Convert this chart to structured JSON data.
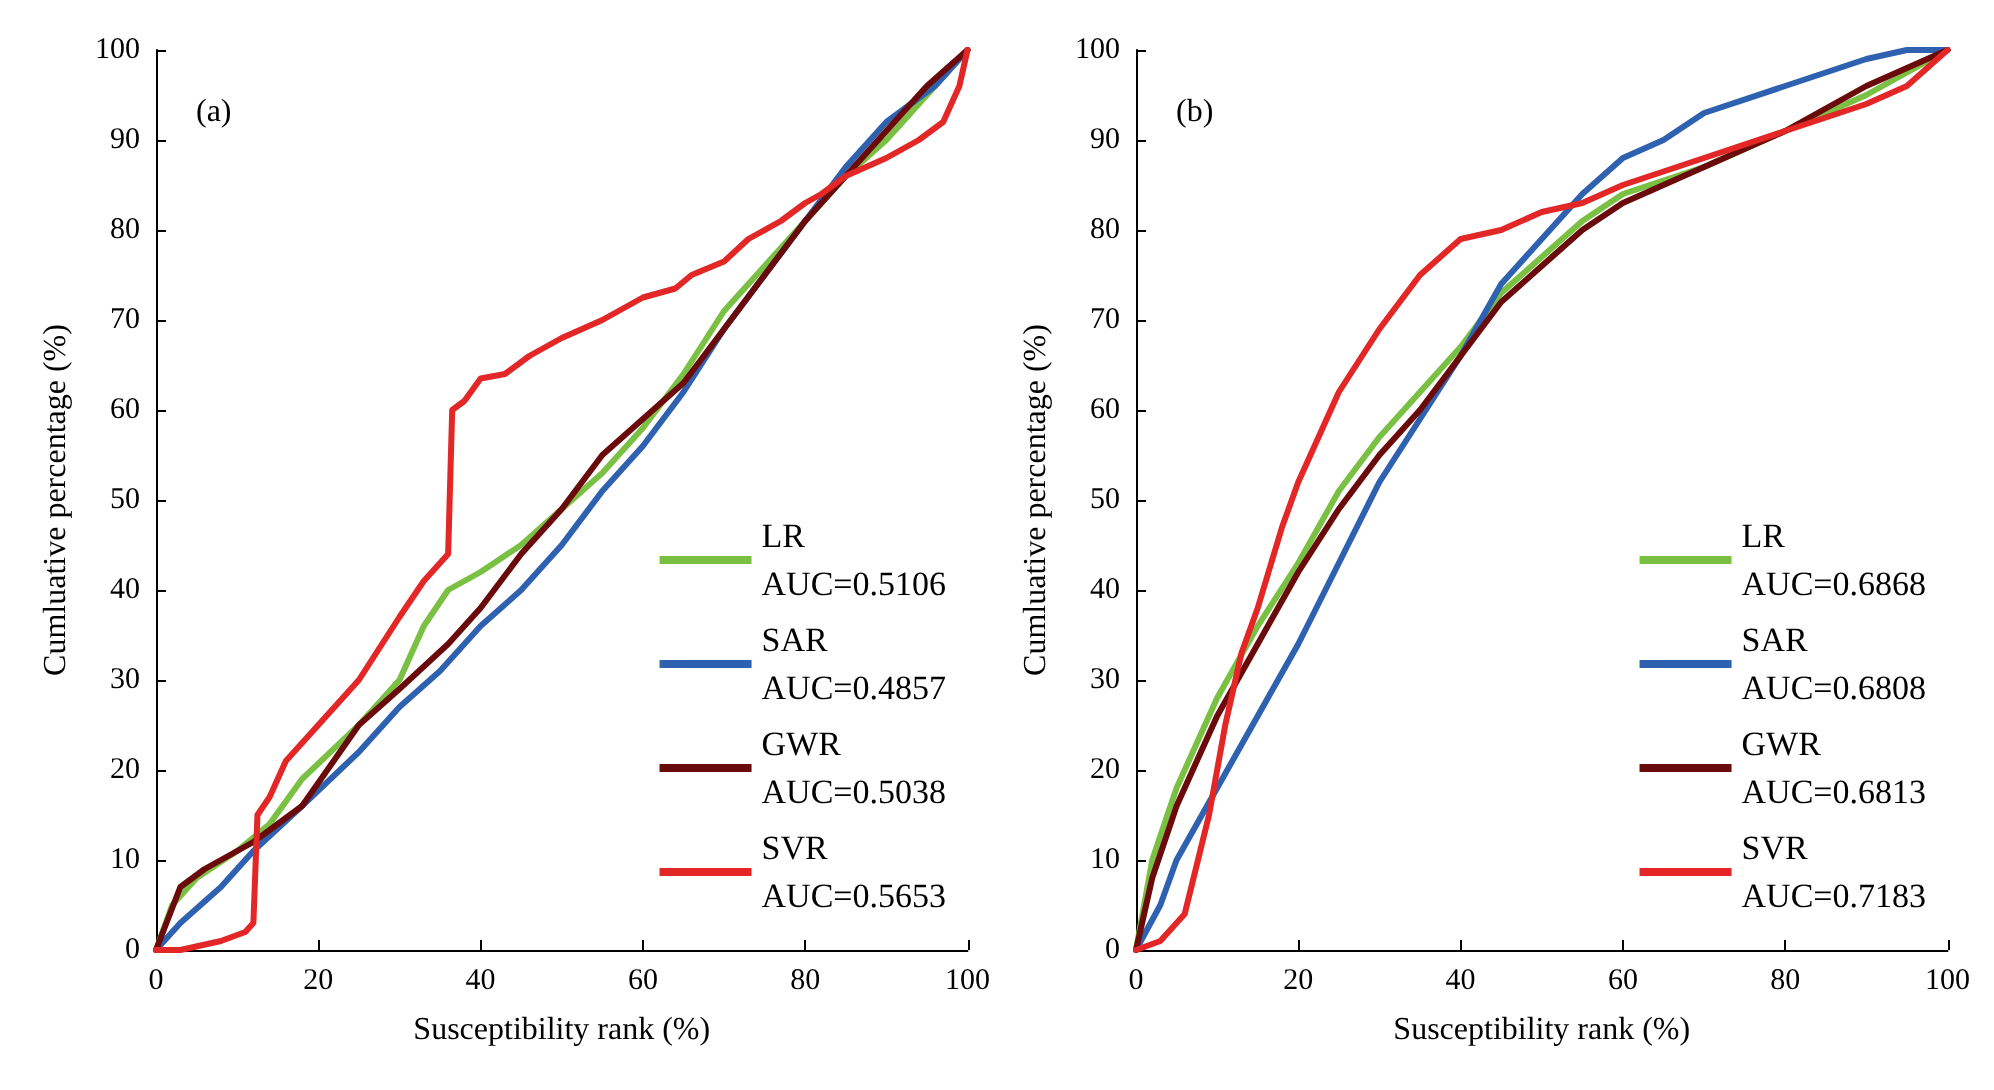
{
  "chart_data": [
    {
      "type": "line",
      "xlabel": "Susceptibility rank (%)",
      "ylabel": "Cumluative percentage (%)",
      "annotations": [
        "(a)"
      ],
      "xlim": [
        0,
        100
      ],
      "ylim": [
        0,
        100
      ],
      "xticks": [
        0,
        20,
        40,
        60,
        80,
        100
      ],
      "yticks": [
        0,
        10,
        20,
        30,
        40,
        50,
        60,
        70,
        80,
        90,
        100
      ],
      "grid": false,
      "legend": "bottom right",
      "marker": "none",
      "line_style": "solid",
      "series": [
        {
          "name": "LR\nAUC=0.5106",
          "color": "#7ac143",
          "x": [
            0,
            2,
            5,
            10,
            14,
            18,
            25,
            30,
            33,
            36,
            40,
            45,
            50,
            55,
            60,
            65,
            70,
            75,
            80,
            85,
            90,
            95,
            100
          ],
          "values": [
            0,
            5,
            8,
            11,
            14,
            19,
            25,
            30,
            36,
            40,
            42,
            45,
            49,
            53,
            58,
            64,
            71,
            76,
            81,
            86,
            90,
            95,
            100
          ]
        },
        {
          "name": "SAR\nAUC=0.4857",
          "color": "#2e62b0",
          "x": [
            0,
            3,
            8,
            12,
            18,
            25,
            30,
            35,
            40,
            45,
            50,
            55,
            60,
            65,
            70,
            75,
            80,
            85,
            90,
            93,
            96,
            100
          ],
          "values": [
            0,
            3,
            7,
            11,
            16,
            22,
            27,
            31,
            36,
            40,
            45,
            51,
            56,
            62,
            69,
            75,
            81,
            87,
            92,
            94,
            96,
            100
          ]
        },
        {
          "name": "GWR\nAUC=0.5038",
          "color": "#6b0a0a",
          "x": [
            0,
            3,
            6,
            12,
            18,
            25,
            30,
            36,
            40,
            45,
            50,
            55,
            60,
            65,
            70,
            75,
            80,
            85,
            90,
            95,
            100
          ],
          "values": [
            0,
            7,
            9,
            12,
            16,
            25,
            29,
            34,
            38,
            44,
            49,
            55,
            59,
            63,
            69,
            75,
            81,
            86,
            91,
            96,
            100
          ]
        },
        {
          "name": "SVR\nAUC=0.5653",
          "color": "#e32626",
          "x": [
            0,
            3,
            8,
            11,
            12,
            12.5,
            14,
            16,
            20,
            25,
            30,
            33,
            36,
            36.5,
            38,
            40,
            43,
            46,
            50,
            55,
            60,
            64,
            66,
            70,
            73,
            77,
            80,
            82,
            85,
            90,
            94,
            97,
            99,
            100
          ],
          "values": [
            0,
            0,
            1,
            2,
            3,
            15,
            17,
            21,
            25,
            30,
            37,
            41,
            44,
            60,
            61,
            63.5,
            64,
            66,
            68,
            70,
            72.5,
            73.5,
            75,
            76.5,
            79,
            81,
            83,
            84,
            86,
            88,
            90,
            92,
            96,
            100
          ]
        }
      ]
    },
    {
      "type": "line",
      "xlabel": "Susceptibility rank (%)",
      "ylabel": "Cumluative percentage (%)",
      "annotations": [
        "(b)"
      ],
      "xlim": [
        0,
        100
      ],
      "ylim": [
        0,
        100
      ],
      "xticks": [
        0,
        20,
        40,
        60,
        80,
        100
      ],
      "yticks": [
        0,
        10,
        20,
        30,
        40,
        50,
        60,
        70,
        80,
        90,
        100
      ],
      "grid": false,
      "legend": "bottom right",
      "marker": "none",
      "line_style": "solid",
      "series": [
        {
          "name": "LR\nAUC=0.6868",
          "color": "#7ac143",
          "x": [
            0,
            2,
            5,
            10,
            15,
            20,
            25,
            30,
            35,
            40,
            45,
            50,
            55,
            60,
            70,
            80,
            90,
            100
          ],
          "values": [
            0,
            10,
            18,
            28,
            36,
            43,
            51,
            57,
            62,
            67,
            73,
            77,
            81,
            84,
            87,
            91,
            95,
            100
          ]
        },
        {
          "name": "SAR\nAUC=0.6808",
          "color": "#2e62b0",
          "x": [
            0,
            3,
            5,
            10,
            15,
            20,
            25,
            30,
            35,
            40,
            45,
            50,
            55,
            60,
            65,
            70,
            80,
            90,
            95,
            100
          ],
          "values": [
            0,
            5,
            10,
            18,
            26,
            34,
            43,
            52,
            59,
            66,
            74,
            79,
            84,
            88,
            90,
            93,
            96,
            99,
            100,
            100
          ]
        },
        {
          "name": "GWR\nAUC=0.6813",
          "color": "#6b0a0a",
          "x": [
            0,
            2,
            5,
            10,
            15,
            20,
            25,
            30,
            35,
            40,
            45,
            50,
            55,
            60,
            70,
            80,
            90,
            100
          ],
          "values": [
            0,
            8,
            16,
            26,
            34,
            42,
            49,
            55,
            60,
            66,
            72,
            76,
            80,
            83,
            87,
            91,
            96,
            100
          ]
        },
        {
          "name": "SVR\nAUC=0.7183",
          "color": "#e32626",
          "x": [
            0,
            3,
            6,
            9,
            11,
            13,
            15,
            18,
            20,
            25,
            30,
            35,
            40,
            45,
            50,
            55,
            60,
            70,
            80,
            90,
            95,
            100
          ],
          "values": [
            0,
            1,
            4,
            15,
            25,
            33,
            38,
            47,
            52,
            62,
            69,
            75,
            79,
            80,
            82,
            83,
            85,
            88,
            91,
            94,
            96,
            100
          ]
        }
      ]
    }
  ]
}
